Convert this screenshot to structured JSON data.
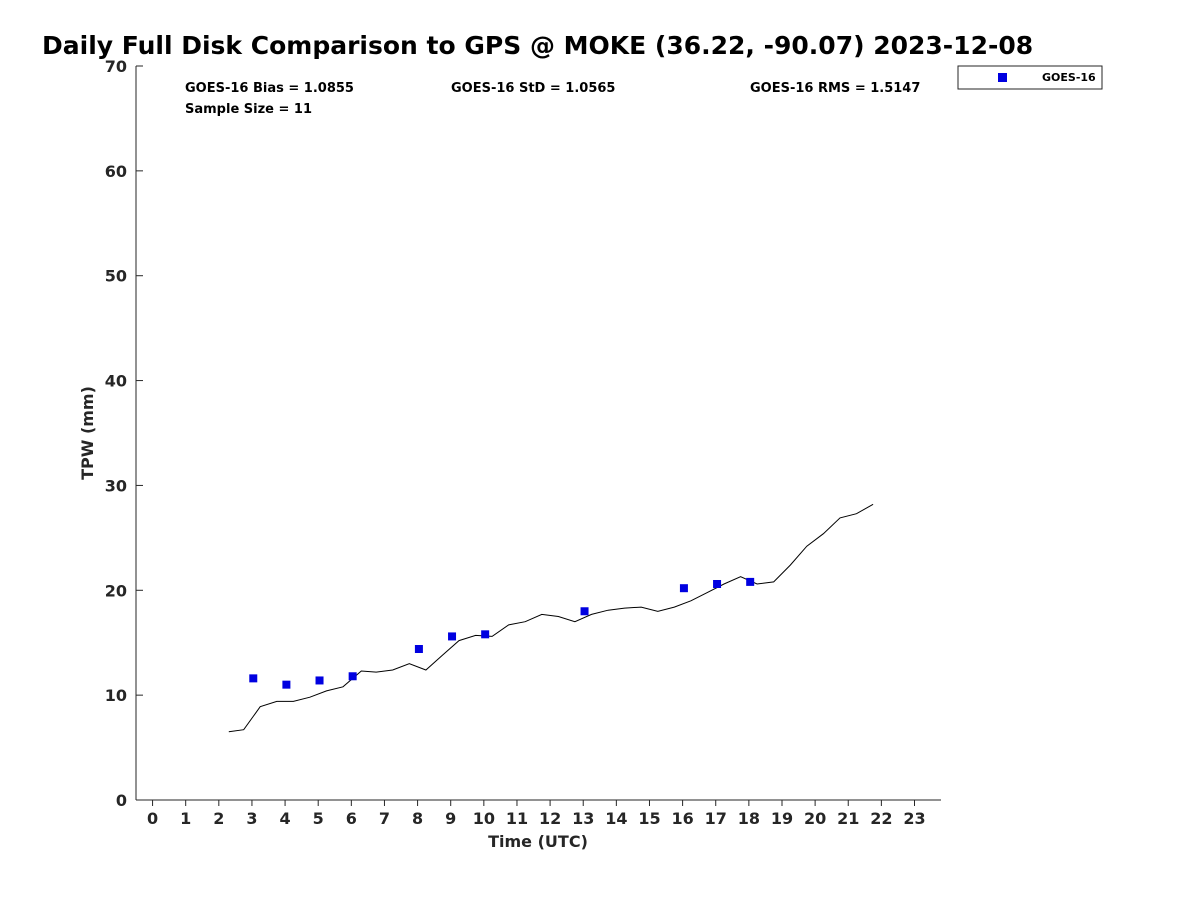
{
  "chart_data": {
    "type": "scatter",
    "title": "Daily Full Disk Comparison to GPS @ MOKE (36.22, -90.07) 2023-12-08",
    "xlabel": "Time (UTC)",
    "ylabel": "TPW (mm)",
    "xlim": [
      -0.5,
      23.8
    ],
    "ylim": [
      0,
      70
    ],
    "x_ticks": [
      "0",
      "1",
      "2",
      "3",
      "4",
      "5",
      "6",
      "7",
      "8",
      "9",
      "10",
      "11",
      "12",
      "13",
      "14",
      "15",
      "16",
      "17",
      "18",
      "19",
      "20",
      "21",
      "22",
      "23"
    ],
    "y_ticks": [
      "0",
      "10",
      "20",
      "30",
      "40",
      "50",
      "60",
      "70"
    ],
    "stats": {
      "bias": "GOES-16 Bias = 1.0855",
      "std": "GOES-16 StD = 1.0565",
      "rms": "GOES-16 RMS = 1.5147",
      "sample_size": "Sample Size = 11"
    },
    "legend": {
      "label": "GOES-16",
      "position": "top-right-outside"
    },
    "series": [
      {
        "name": "GOES-16",
        "color": "#0000e0",
        "marker": "square",
        "x": [
          3.04,
          4.04,
          5.04,
          6.04,
          8.04,
          9.04,
          10.04,
          13.04,
          16.04,
          17.04,
          18.04
        ],
        "y": [
          11.6,
          11.0,
          11.4,
          11.8,
          14.4,
          15.6,
          15.8,
          18.0,
          20.2,
          20.6,
          20.8
        ]
      },
      {
        "color": "#000000",
        "marker": "line",
        "x": [
          2.3,
          2.75,
          3.25,
          3.75,
          4.25,
          4.75,
          5.25,
          5.75,
          6.3,
          6.75,
          7.25,
          7.75,
          8.25,
          8.75,
          9.25,
          9.75,
          10.25,
          10.75,
          11.25,
          11.75,
          12.25,
          12.75,
          13.25,
          13.75,
          14.25,
          14.75,
          15.25,
          15.75,
          16.25,
          16.75,
          17.25,
          17.75,
          18.25,
          18.75,
          19.25,
          19.75,
          20.25,
          20.75,
          21.25,
          21.75
        ],
        "y": [
          6.5,
          6.7,
          8.9,
          9.4,
          9.4,
          9.8,
          10.4,
          10.8,
          12.3,
          12.2,
          12.4,
          13.0,
          12.4,
          13.8,
          15.2,
          15.7,
          15.6,
          16.7,
          17.0,
          17.7,
          17.5,
          17.0,
          17.7,
          18.1,
          18.3,
          18.4,
          18.0,
          18.4,
          19.0,
          19.8,
          20.6,
          21.3,
          20.6,
          20.8,
          22.4,
          24.2,
          25.4,
          26.9,
          27.3,
          28.2
        ]
      }
    ]
  }
}
